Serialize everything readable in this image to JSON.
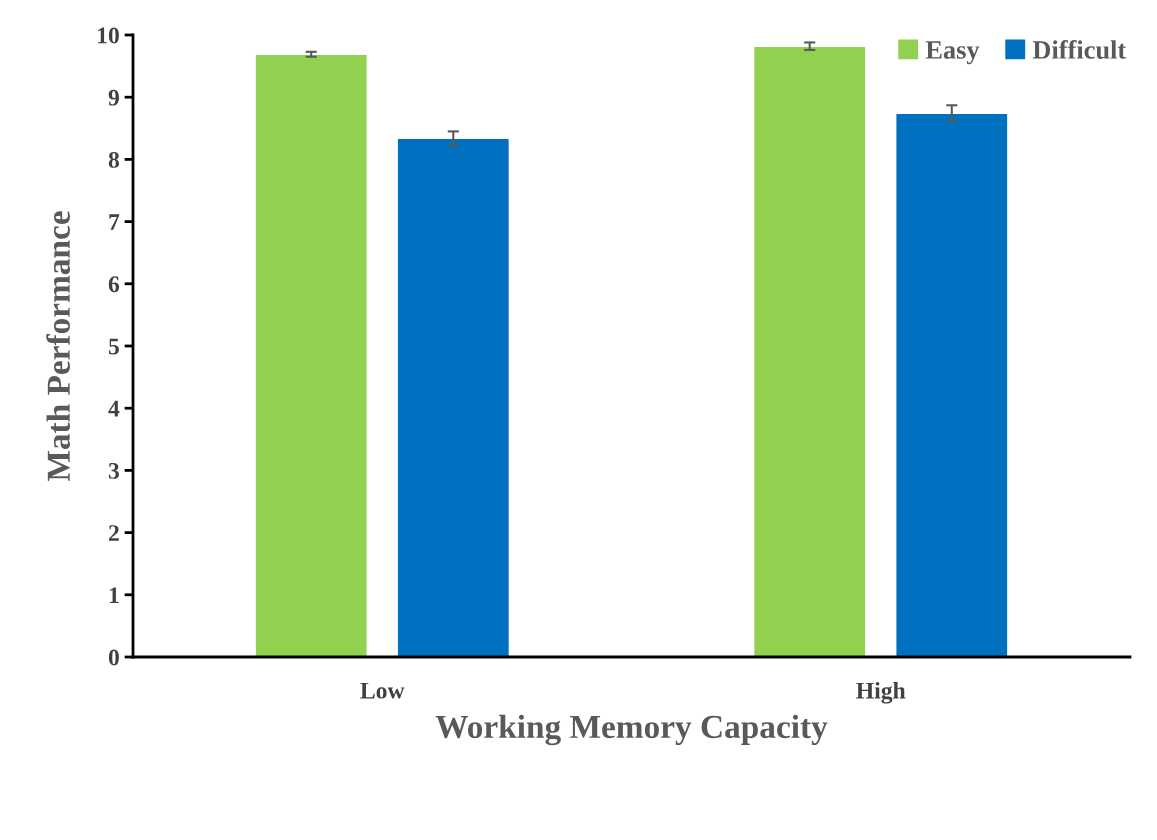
{
  "chart_data": {
    "type": "bar",
    "xlabel": "Working Memory Capacity",
    "ylabel": "Math Performance",
    "categories": [
      "Low",
      "High"
    ],
    "series": [
      {
        "name": "Easy",
        "color": "#92d050",
        "values": [
          9.69,
          9.82
        ],
        "errors": [
          0.04,
          0.06
        ]
      },
      {
        "name": "Difficult",
        "color": "#0070c0",
        "values": [
          8.34,
          8.74
        ],
        "errors": [
          0.11,
          0.13
        ]
      }
    ],
    "ylim": [
      0,
      10
    ],
    "yticks": [
      0,
      1,
      2,
      3,
      4,
      5,
      6,
      7,
      8,
      9,
      10
    ],
    "grid": false,
    "legend": "top right"
  }
}
